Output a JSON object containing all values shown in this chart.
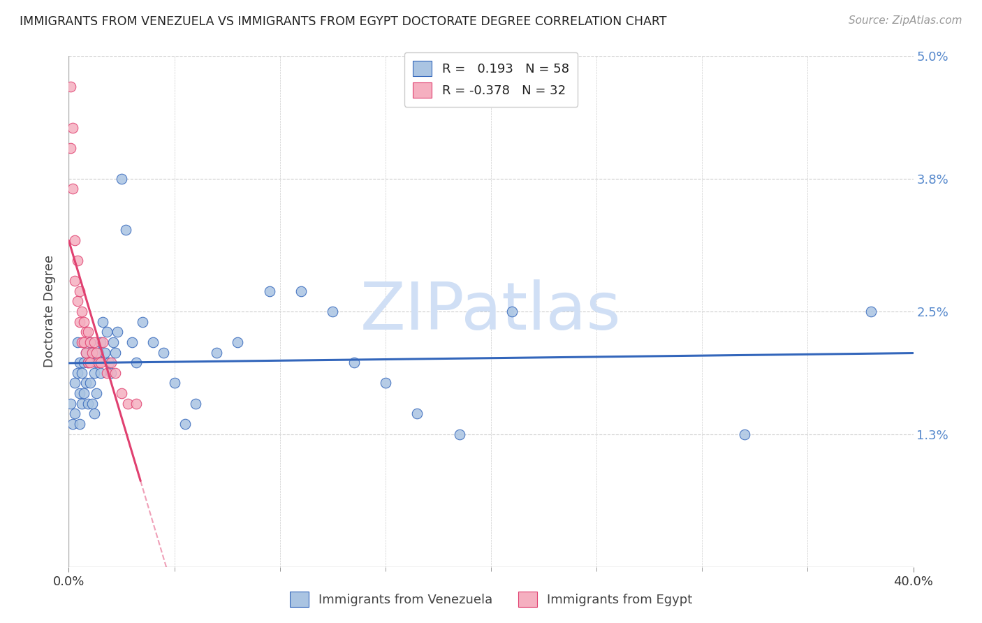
{
  "title": "IMMIGRANTS FROM VENEZUELA VS IMMIGRANTS FROM EGYPT DOCTORATE DEGREE CORRELATION CHART",
  "source": "Source: ZipAtlas.com",
  "ylabel": "Doctorate Degree",
  "xlim": [
    0.0,
    0.4
  ],
  "ylim": [
    0.0,
    0.05
  ],
  "ytick_vals": [
    0.013,
    0.025,
    0.038,
    0.05
  ],
  "ytick_lbls": [
    "1.3%",
    "2.5%",
    "3.8%",
    "5.0%"
  ],
  "R_venezuela": 0.193,
  "N_venezuela": 58,
  "R_egypt": -0.378,
  "N_egypt": 32,
  "color_venezuela": "#aac4e2",
  "color_egypt": "#f5afc0",
  "line_color_venezuela": "#3366bb",
  "line_color_egypt": "#e04070",
  "watermark": "ZIPatlas",
  "watermark_color": "#d0dff5",
  "background_color": "#ffffff",
  "grid_color": "#cccccc",
  "venezuela_x": [
    0.001,
    0.002,
    0.003,
    0.003,
    0.004,
    0.004,
    0.005,
    0.005,
    0.005,
    0.006,
    0.006,
    0.007,
    0.007,
    0.008,
    0.008,
    0.009,
    0.009,
    0.01,
    0.01,
    0.011,
    0.011,
    0.012,
    0.012,
    0.013,
    0.013,
    0.014,
    0.015,
    0.015,
    0.016,
    0.017,
    0.018,
    0.019,
    0.02,
    0.021,
    0.022,
    0.023,
    0.025,
    0.027,
    0.03,
    0.032,
    0.035,
    0.04,
    0.045,
    0.05,
    0.055,
    0.06,
    0.07,
    0.08,
    0.095,
    0.11,
    0.125,
    0.135,
    0.15,
    0.165,
    0.185,
    0.21,
    0.32,
    0.38
  ],
  "venezuela_y": [
    0.016,
    0.014,
    0.018,
    0.015,
    0.022,
    0.019,
    0.02,
    0.017,
    0.014,
    0.019,
    0.016,
    0.02,
    0.017,
    0.021,
    0.018,
    0.02,
    0.016,
    0.022,
    0.018,
    0.021,
    0.016,
    0.019,
    0.015,
    0.02,
    0.017,
    0.021,
    0.022,
    0.019,
    0.024,
    0.021,
    0.023,
    0.02,
    0.019,
    0.022,
    0.021,
    0.023,
    0.038,
    0.033,
    0.022,
    0.02,
    0.024,
    0.022,
    0.021,
    0.018,
    0.014,
    0.016,
    0.021,
    0.022,
    0.027,
    0.027,
    0.025,
    0.02,
    0.018,
    0.015,
    0.013,
    0.025,
    0.013,
    0.025
  ],
  "egypt_x": [
    0.001,
    0.001,
    0.002,
    0.002,
    0.003,
    0.003,
    0.004,
    0.004,
    0.005,
    0.005,
    0.006,
    0.006,
    0.007,
    0.007,
    0.008,
    0.008,
    0.009,
    0.009,
    0.01,
    0.01,
    0.011,
    0.012,
    0.013,
    0.014,
    0.015,
    0.016,
    0.018,
    0.02,
    0.022,
    0.025,
    0.028,
    0.032
  ],
  "egypt_y": [
    0.047,
    0.041,
    0.043,
    0.037,
    0.032,
    0.028,
    0.03,
    0.026,
    0.027,
    0.024,
    0.025,
    0.022,
    0.024,
    0.022,
    0.023,
    0.021,
    0.023,
    0.02,
    0.022,
    0.02,
    0.021,
    0.022,
    0.021,
    0.02,
    0.02,
    0.022,
    0.019,
    0.02,
    0.019,
    0.017,
    0.016,
    0.016
  ]
}
